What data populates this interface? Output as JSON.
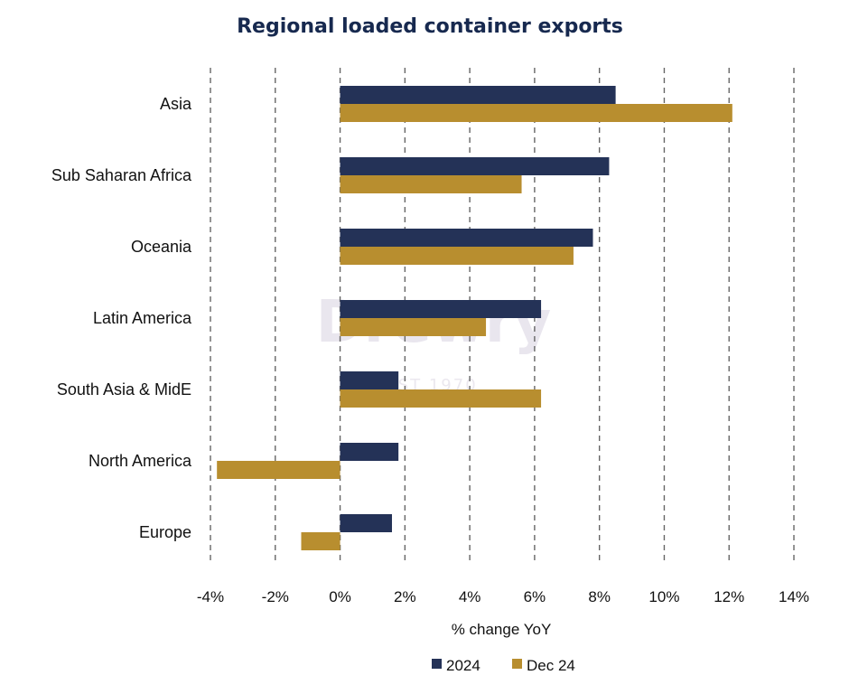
{
  "chart_data": {
    "type": "bar",
    "orientation": "horizontal",
    "title": "Regional loaded container exports",
    "xlabel": "% change YoY",
    "ylabel": "",
    "categories": [
      "Asia",
      "Sub Saharan Africa",
      "Oceania",
      "Latin America",
      "South Asia & MidE",
      "North America",
      "Europe"
    ],
    "series": [
      {
        "name": "2024",
        "color": "#243257",
        "values": [
          8.5,
          8.3,
          7.8,
          6.2,
          1.8,
          1.8,
          1.6
        ]
      },
      {
        "name": "Dec 24",
        "color": "#b88e2f",
        "values": [
          12.1,
          5.6,
          7.2,
          4.5,
          6.2,
          -3.8,
          -1.2
        ]
      }
    ],
    "xlim": [
      -4,
      14
    ],
    "xticks": [
      -4,
      -2,
      0,
      2,
      4,
      6,
      8,
      10,
      12,
      14
    ],
    "tick_labels": [
      "-4%",
      "-2%",
      "0%",
      "2%",
      "4%",
      "6%",
      "8%",
      "10%",
      "12%",
      "14%"
    ],
    "grid": "vertical dashed",
    "legend": "bottom-center",
    "watermark": {
      "text": "Drewry",
      "sub": "EST 1970"
    }
  }
}
